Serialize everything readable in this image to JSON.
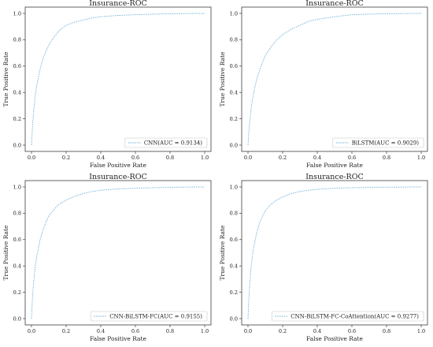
{
  "chart_data": [
    {
      "type": "line",
      "title": "Insurance-ROC",
      "xlabel": "False Positive Rate",
      "ylabel": "True Positive Rate",
      "xlim": [
        0,
        1
      ],
      "ylim": [
        0,
        1
      ],
      "xticks": [
        "0.0",
        "0.2",
        "0.4",
        "0.6",
        "0.8",
        "1.0"
      ],
      "yticks": [
        "0.0",
        "0.2",
        "0.4",
        "0.6",
        "0.8",
        "1.0"
      ],
      "legend_position": "bottom-right",
      "color": "#74b3d8",
      "series": [
        {
          "name": "CNN(AUC = 0.9134)",
          "x": [
            0,
            0.005,
            0.01,
            0.02,
            0.03,
            0.05,
            0.07,
            0.1,
            0.13,
            0.16,
            0.2,
            0.25,
            0.3,
            0.35,
            0.4,
            0.5,
            0.6,
            0.7,
            0.8,
            0.9,
            1.0
          ],
          "y": [
            0,
            0.12,
            0.22,
            0.36,
            0.45,
            0.58,
            0.67,
            0.76,
            0.82,
            0.87,
            0.91,
            0.935,
            0.95,
            0.965,
            0.975,
            0.985,
            0.99,
            0.994,
            0.997,
            0.999,
            1.0
          ]
        }
      ]
    },
    {
      "type": "line",
      "title": "Insurance-ROC",
      "xlabel": "False Positive Rate",
      "ylabel": "True Positive Rate",
      "xlim": [
        0,
        1
      ],
      "ylim": [
        0,
        1
      ],
      "xticks": [
        "0.0",
        "0.2",
        "0.4",
        "0.6",
        "0.8",
        "1.0"
      ],
      "yticks": [
        "0.0",
        "0.2",
        "0.4",
        "0.6",
        "0.8",
        "1.0"
      ],
      "legend_position": "bottom-right",
      "color": "#74b3d8",
      "series": [
        {
          "name": "BiLSTM(AUC = 0.9029)",
          "x": [
            0,
            0.005,
            0.01,
            0.02,
            0.03,
            0.05,
            0.07,
            0.1,
            0.13,
            0.16,
            0.2,
            0.25,
            0.3,
            0.35,
            0.4,
            0.5,
            0.6,
            0.7,
            0.8,
            0.9,
            1.0
          ],
          "y": [
            0,
            0.1,
            0.18,
            0.3,
            0.38,
            0.5,
            0.58,
            0.68,
            0.74,
            0.79,
            0.84,
            0.88,
            0.91,
            0.94,
            0.955,
            0.975,
            0.99,
            0.995,
            0.997,
            0.999,
            1.0
          ]
        }
      ]
    },
    {
      "type": "line",
      "title": "Insurance-ROC",
      "xlabel": "False Positive Rate",
      "ylabel": "True Positive Rate",
      "xlim": [
        0,
        1
      ],
      "ylim": [
        0,
        1
      ],
      "xticks": [
        "0.0",
        "0.2",
        "0.4",
        "0.6",
        "0.8",
        "1.0"
      ],
      "yticks": [
        "0.0",
        "0.2",
        "0.4",
        "0.6",
        "0.8",
        "1.0"
      ],
      "legend_position": "bottom-right",
      "color": "#74b3d8",
      "series": [
        {
          "name": "CNN-BiLSTM-FC(AUC = 0.9155)",
          "x": [
            0,
            0.005,
            0.01,
            0.02,
            0.03,
            0.05,
            0.07,
            0.1,
            0.13,
            0.16,
            0.2,
            0.25,
            0.3,
            0.35,
            0.4,
            0.5,
            0.6,
            0.7,
            0.8,
            0.9,
            1.0
          ],
          "y": [
            0,
            0.14,
            0.24,
            0.38,
            0.47,
            0.6,
            0.69,
            0.78,
            0.83,
            0.87,
            0.9,
            0.93,
            0.95,
            0.965,
            0.975,
            0.985,
            0.99,
            0.994,
            0.997,
            0.999,
            1.0
          ]
        }
      ]
    },
    {
      "type": "line",
      "title": "Insurance-ROC",
      "xlabel": "False Positive Rate",
      "ylabel": "True Positive Rate",
      "xlim": [
        0,
        1
      ],
      "ylim": [
        0,
        1
      ],
      "xticks": [
        "0.0",
        "0.2",
        "0.4",
        "0.6",
        "0.8",
        "1.0"
      ],
      "yticks": [
        "0.0",
        "0.2",
        "0.4",
        "0.6",
        "0.8",
        "1.0"
      ],
      "legend_position": "bottom-right",
      "color": "#74b3d8",
      "series": [
        {
          "name": "CNN-BiLSTM-FC-CoAttention(AUC = 0.9277)",
          "x": [
            0,
            0.005,
            0.01,
            0.02,
            0.03,
            0.05,
            0.07,
            0.1,
            0.13,
            0.16,
            0.2,
            0.25,
            0.3,
            0.35,
            0.4,
            0.5,
            0.6,
            0.7,
            0.8,
            0.9,
            1.0
          ],
          "y": [
            0,
            0.15,
            0.26,
            0.42,
            0.52,
            0.65,
            0.74,
            0.82,
            0.865,
            0.895,
            0.925,
            0.95,
            0.965,
            0.975,
            0.982,
            0.99,
            0.994,
            0.997,
            0.998,
            0.999,
            1.0
          ]
        }
      ]
    }
  ]
}
